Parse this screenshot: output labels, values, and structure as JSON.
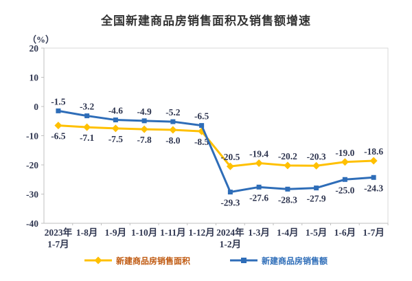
{
  "title": "全国新建商品房销售面积及销售额增速",
  "unit_label": "（%）",
  "chart_data": {
    "type": "line",
    "title": "全国新建商品房销售面积及销售额增速",
    "ylabel": "（%）",
    "xlabel": "",
    "categories": [
      "2023年\n1-7月",
      "1-8月",
      "1-9月",
      "1-10月",
      "1-11月",
      "1-12月",
      "2024年\n1-2月",
      "1-3月",
      "1-4月",
      "1-5月",
      "1-6月",
      "1-7月"
    ],
    "series": [
      {
        "name": "新建商品房销售面积",
        "color": "#FFC000",
        "marker": "diamond",
        "label_color": "#C05A11",
        "values": [
          -6.5,
          -7.1,
          -7.5,
          -7.8,
          -8.0,
          -8.5,
          -20.5,
          -19.4,
          -20.2,
          -20.3,
          -19.0,
          -18.6
        ],
        "labels": [
          "-6.5",
          "-7.1",
          "-7.5",
          "-7.8",
          "-8.0",
          "-8.5",
          "-20.5",
          "-19.4",
          "-20.2",
          "-20.3",
          "-19.0",
          "-18.6"
        ],
        "label_sides": [
          "below",
          "below",
          "below",
          "below",
          "below",
          "below",
          "above",
          "above",
          "above",
          "above",
          "above",
          "above"
        ]
      },
      {
        "name": "新建商品房销售额",
        "color": "#2E6DB8",
        "marker": "square",
        "label_color": "#2E6DB8",
        "values": [
          -1.5,
          -3.2,
          -4.6,
          -4.9,
          -5.2,
          -6.5,
          -29.3,
          -27.6,
          -28.3,
          -27.9,
          -25.0,
          -24.3
        ],
        "labels": [
          "-1.5",
          "-3.2",
          "-4.6",
          "-4.9",
          "-5.2",
          "-6.5",
          "-29.3",
          "-27.6",
          "-28.3",
          "-27.9",
          "-25.0",
          "-24.3"
        ],
        "label_sides": [
          "above",
          "above",
          "above",
          "above",
          "above",
          "above",
          "below",
          "below",
          "below",
          "below",
          "below",
          "below"
        ]
      }
    ],
    "yticks": [
      20,
      10,
      0,
      -10,
      -20,
      -30,
      -40
    ],
    "ylim": [
      -40,
      20
    ],
    "grid": false,
    "legend_position": "bottom",
    "axis_color": "#BFBFBF",
    "border_color": "#D9D9D9",
    "tick_label_color": "#2F3650",
    "data_label_color": "#2F3650"
  }
}
